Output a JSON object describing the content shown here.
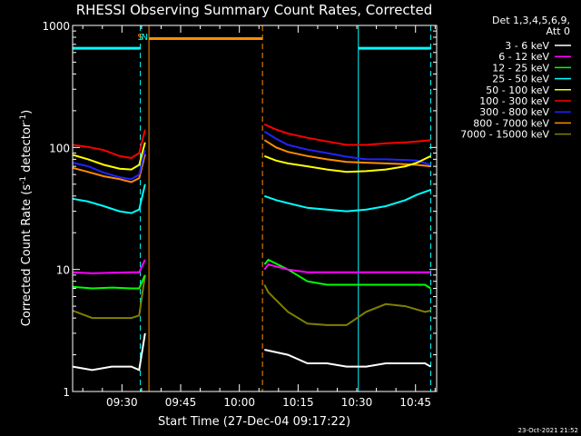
{
  "chart_data": {
    "type": "line",
    "title": "RHESSI Observing Summary Count Rates, Corrected",
    "xlabel": "Start Time (27-Dec-04 09:17:22)",
    "ylabel_main": "Corrected Count Rate (s",
    "ylabel_sup1": "-1",
    "ylabel_mid": " detector",
    "ylabel_sup2": "-1",
    "ylabel_end": ")",
    "yscale": "log",
    "ylim": [
      1,
      1000
    ],
    "xlim_minutes": [
      0,
      93
    ],
    "x_ticks": [
      {
        "label": "09:30",
        "minute": 12.6
      },
      {
        "label": "09:45",
        "minute": 27.6
      },
      {
        "label": "10:00",
        "minute": 42.6
      },
      {
        "label": "10:15",
        "minute": 57.6
      },
      {
        "label": "10:30",
        "minute": 72.6
      },
      {
        "label": "10:45",
        "minute": 87.6
      }
    ],
    "y_ticks": [
      {
        "label": "1",
        "value": 1
      },
      {
        "label": "10",
        "value": 10
      },
      {
        "label": "100",
        "value": 100
      },
      {
        "label": "1000",
        "value": 1000
      }
    ],
    "legend_header": [
      "Det 1,3,4,5,6,9,",
      "Att 0"
    ],
    "legend_placement": "right",
    "footer_date": "23-Oct-2021 21:52",
    "flags": [
      {
        "text": "S",
        "color": "#ff8c00",
        "minute": 17.3
      },
      {
        "text": "N",
        "color": "#00ffff",
        "minute": 18.4
      }
    ],
    "night_segments": [
      {
        "minute_start": 0,
        "minute_end": 17.3,
        "value": 650,
        "color": "#00ffff"
      },
      {
        "minute_start": 73.0,
        "minute_end": 91.5,
        "value": 650,
        "color": "#00ffff"
      }
    ],
    "saa_segment": {
      "minute_start": 19.5,
      "minute_end": 48.5,
      "value": 780,
      "color": "#ff8c00"
    },
    "vlines": [
      {
        "minute": 17.3,
        "color": "#00ffff",
        "dash": true
      },
      {
        "minute": 19.5,
        "color": "#ff8c00",
        "dash": false
      },
      {
        "minute": 48.5,
        "color": "#ff8c00",
        "dash": true
      },
      {
        "minute": 73.0,
        "color": "#00ffff",
        "dash": false
      },
      {
        "minute": 91.5,
        "color": "#00ffff",
        "dash": true
      }
    ],
    "series": [
      {
        "name": "3 - 6 keV",
        "color": "#ffffff",
        "segments": [
          {
            "x": [
              0,
              5,
              10,
              15,
              17,
              18.5
            ],
            "y": [
              1.6,
              1.5,
              1.6,
              1.6,
              1.5,
              3
            ]
          },
          {
            "x": [
              49,
              55,
              60,
              65,
              70,
              75,
              80,
              85,
              90,
              91.5
            ],
            "y": [
              2.2,
              2.0,
              1.7,
              1.7,
              1.6,
              1.6,
              1.7,
              1.7,
              1.7,
              1.6
            ]
          }
        ]
      },
      {
        "name": "6 - 12 keV",
        "color": "#ff00ff",
        "segments": [
          {
            "x": [
              0,
              5,
              10,
              15,
              17,
              18.5
            ],
            "y": [
              9.5,
              9.3,
              9.4,
              9.5,
              9.5,
              12
            ]
          },
          {
            "x": [
              49,
              50,
              55,
              60,
              65,
              70,
              75,
              80,
              85,
              90,
              91.5
            ],
            "y": [
              10,
              11,
              10,
              9.5,
              9.5,
              9.5,
              9.5,
              9.5,
              9.5,
              9.5,
              9.5
            ]
          }
        ]
      },
      {
        "name": "12 - 25 keV",
        "color": "#00ff00",
        "segments": [
          {
            "x": [
              0,
              5,
              10,
              15,
              17,
              18.5
            ],
            "y": [
              7.2,
              7.0,
              7.1,
              7.0,
              7.0,
              9
            ]
          },
          {
            "x": [
              49,
              50,
              55,
              60,
              65,
              70,
              75,
              80,
              85,
              90,
              91.5
            ],
            "y": [
              11,
              12,
              10,
              8,
              7.5,
              7.5,
              7.5,
              7.5,
              7.5,
              7.5,
              7.0
            ]
          }
        ]
      },
      {
        "name": "25 - 50 keV",
        "color": "#00ffff",
        "segments": [
          {
            "x": [
              0,
              4,
              8,
              12,
              15,
              17,
              18.5
            ],
            "y": [
              38,
              36,
              33,
              30,
              29,
              31,
              50
            ]
          },
          {
            "x": [
              49,
              52,
              55,
              60,
              65,
              70,
              75,
              80,
              85,
              88,
              91.5
            ],
            "y": [
              40,
              37,
              35,
              32,
              31,
              30,
              31,
              33,
              37,
              41,
              45
            ]
          }
        ]
      },
      {
        "name": "50 - 100 keV",
        "color": "#ffff00",
        "segments": [
          {
            "x": [
              0,
              4,
              8,
              12,
              15,
              17,
              18.5
            ],
            "y": [
              87,
              80,
              72,
              67,
              66,
              72,
              110
            ]
          },
          {
            "x": [
              49,
              52,
              55,
              60,
              65,
              70,
              75,
              80,
              85,
              88,
              91.5
            ],
            "y": [
              85,
              78,
              74,
              70,
              66,
              63,
              64,
              66,
              70,
              75,
              85
            ]
          }
        ]
      },
      {
        "name": "100 - 300 keV",
        "color": "#ff0000",
        "segments": [
          {
            "x": [
              0,
              4,
              8,
              12,
              15,
              17,
              18.5
            ],
            "y": [
              105,
              101,
              95,
              85,
              82,
              90,
              140
            ]
          },
          {
            "x": [
              49,
              52,
              55,
              60,
              65,
              70,
              75,
              80,
              85,
              88,
              91.5
            ],
            "y": [
              155,
              140,
              130,
              120,
              112,
              105,
              105,
              108,
              110,
              112,
              115
            ]
          }
        ]
      },
      {
        "name": "300 - 800 keV",
        "color": "#2222ff",
        "segments": [
          {
            "x": [
              0,
              4,
              8,
              12,
              15,
              17,
              18.5
            ],
            "y": [
              75,
              70,
              62,
              57,
              55,
              60,
              95
            ]
          },
          {
            "x": [
              49,
              52,
              55,
              60,
              65,
              70,
              75,
              80,
              85,
              88,
              91.5
            ],
            "y": [
              135,
              118,
              105,
              96,
              90,
              84,
              80,
              80,
              79,
              78,
              72
            ]
          }
        ]
      },
      {
        "name": "800 - 7000 keV",
        "color": "#ff8c00",
        "segments": [
          {
            "x": [
              0,
              4,
              8,
              12,
              15,
              17,
              18.5
            ],
            "y": [
              68,
              63,
              58,
              55,
              52,
              56,
              88
            ]
          },
          {
            "x": [
              49,
              52,
              55,
              60,
              65,
              70,
              75,
              80,
              85,
              88,
              91.5
            ],
            "y": [
              115,
              100,
              92,
              85,
              80,
              76,
              75,
              74,
              73,
              72,
              70
            ]
          }
        ]
      },
      {
        "name": "7000 - 15000 keV",
        "color": "#808000",
        "segments": [
          {
            "x": [
              0,
              5,
              10,
              15,
              17,
              18.5
            ],
            "y": [
              4.6,
              4.0,
              4.0,
              4.0,
              4.2,
              9
            ]
          },
          {
            "x": [
              49,
              50,
              55,
              60,
              65,
              70,
              75,
              80,
              85,
              90,
              91.5
            ],
            "y": [
              7.5,
              6.5,
              4.5,
              3.6,
              3.5,
              3.5,
              4.5,
              5.2,
              5.0,
              4.5,
              4.6
            ]
          }
        ]
      }
    ]
  }
}
